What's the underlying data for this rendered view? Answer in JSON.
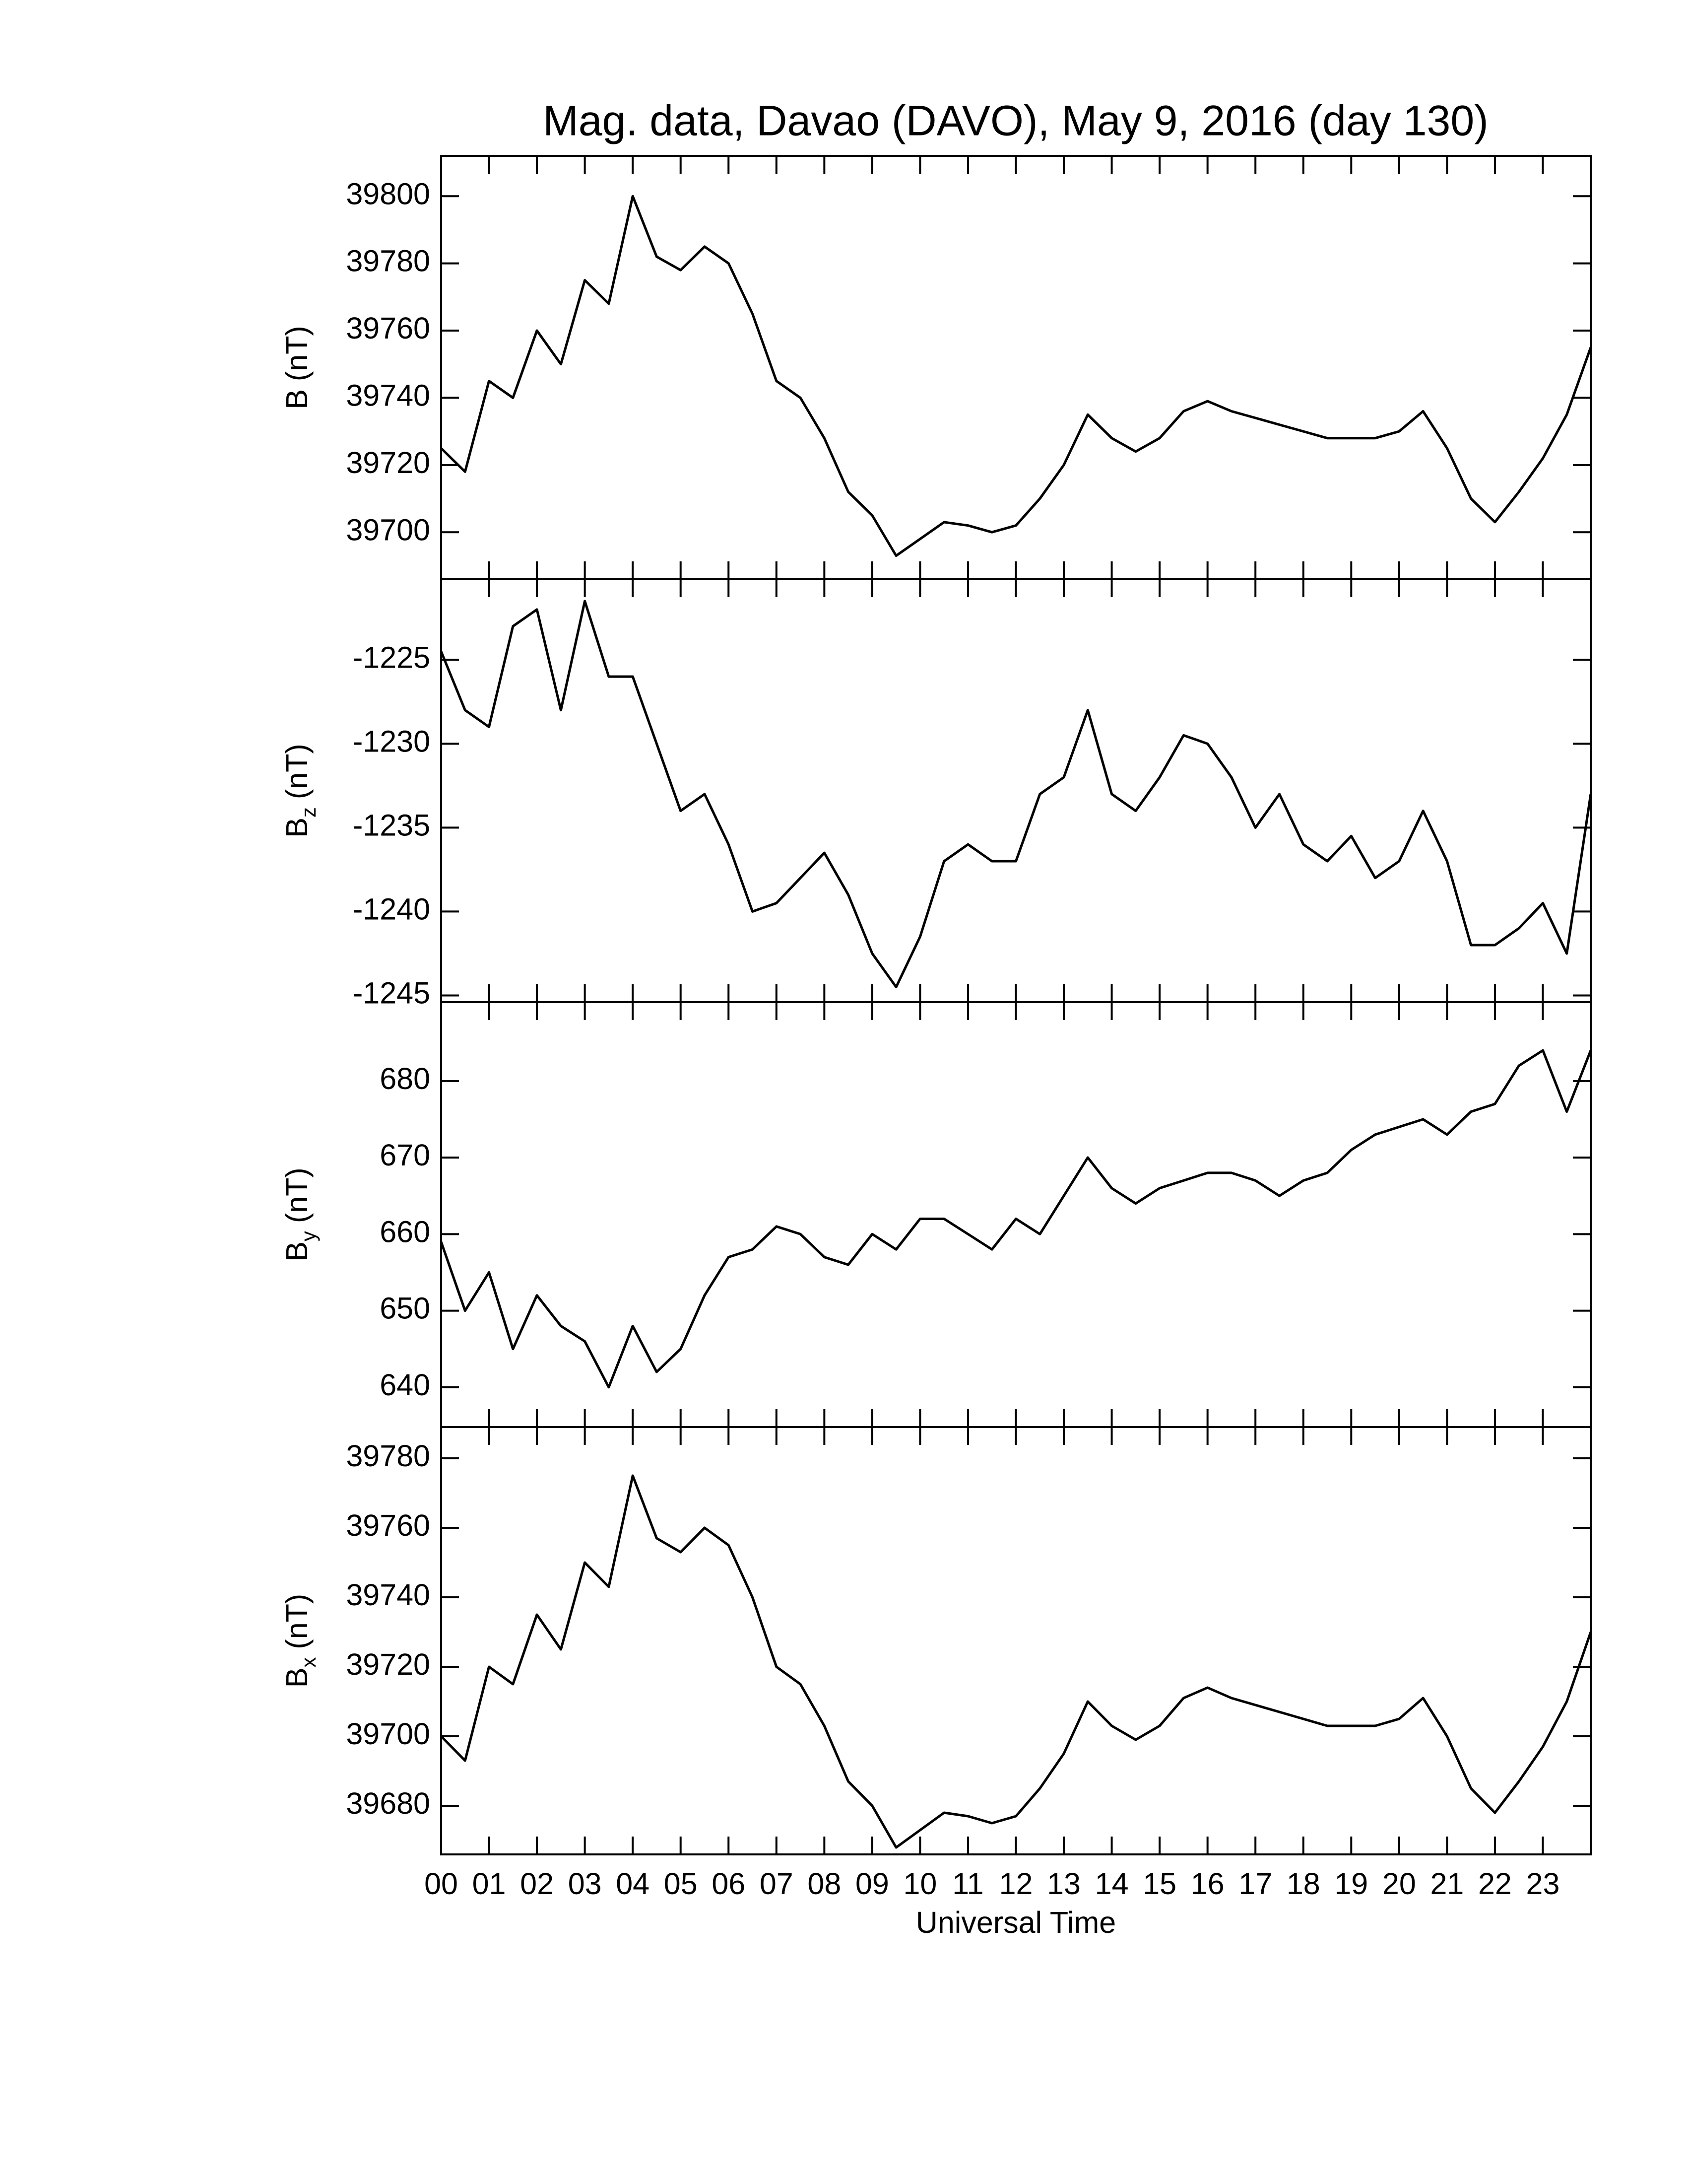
{
  "chart_data": [
    {
      "type": "line",
      "title": "Mag. data, Davao (DAVO), May 9, 2016 (day 130)",
      "ylabel": {
        "symbol": "B",
        "unit": "(nT)"
      },
      "xlim": [
        0,
        24
      ],
      "ylim": [
        39686,
        39812
      ],
      "yticks": [
        39700,
        39720,
        39740,
        39760,
        39780,
        39800
      ],
      "color": "#000000",
      "x": [
        0,
        0.5,
        1,
        1.5,
        2,
        2.5,
        3,
        3.5,
        4,
        4.5,
        5,
        5.5,
        6,
        6.5,
        7,
        7.5,
        8,
        8.5,
        9,
        9.5,
        10,
        10.5,
        11,
        11.5,
        12,
        12.5,
        13,
        13.5,
        14,
        14.5,
        15,
        15.5,
        16,
        16.5,
        17,
        17.5,
        18,
        18.5,
        19,
        19.5,
        20,
        20.5,
        21,
        21.5,
        22,
        22.5,
        23,
        23.5,
        24
      ],
      "values": [
        39725,
        39718,
        39745,
        39740,
        39760,
        39750,
        39775,
        39768,
        39800,
        39782,
        39778,
        39785,
        39780,
        39765,
        39745,
        39740,
        39728,
        39712,
        39705,
        39693,
        39698,
        39703,
        39702,
        39700,
        39702,
        39710,
        39720,
        39735,
        39728,
        39724,
        39728,
        39736,
        39739,
        39736,
        39734,
        39732,
        39730,
        39728,
        39728,
        39728,
        39730,
        39736,
        39725,
        39710,
        39703,
        39712,
        39722,
        39735,
        39755
      ]
    },
    {
      "type": "line",
      "ylabel": {
        "symbol": "B",
        "subscript": "z",
        "unit": "(nT)"
      },
      "xlim": [
        0,
        24
      ],
      "ylim": [
        -1245.4,
        -1220.2
      ],
      "yticks": [
        -1245,
        -1240,
        -1235,
        -1230,
        -1225
      ],
      "color": "#000000",
      "x": [
        0,
        0.5,
        1,
        1.5,
        2,
        2.5,
        3,
        3.5,
        4,
        4.5,
        5,
        5.5,
        6,
        6.5,
        7,
        7.5,
        8,
        8.5,
        9,
        9.5,
        10,
        10.5,
        11,
        11.5,
        12,
        12.5,
        13,
        13.5,
        14,
        14.5,
        15,
        15.5,
        16,
        16.5,
        17,
        17.5,
        18,
        18.5,
        19,
        19.5,
        20,
        20.5,
        21,
        21.5,
        22,
        22.5,
        23,
        23.5,
        24
      ],
      "values": [
        -1224.5,
        -1228,
        -1229,
        -1223,
        -1222,
        -1228,
        -1221.5,
        -1226,
        -1226,
        -1230,
        -1234,
        -1233,
        -1236,
        -1240,
        -1239.5,
        -1238,
        -1236.5,
        -1239,
        -1242.5,
        -1244.5,
        -1241.5,
        -1237,
        -1236,
        -1237,
        -1237,
        -1233,
        -1232,
        -1228,
        -1233,
        -1234,
        -1232,
        -1229.5,
        -1230,
        -1232,
        -1235,
        -1233,
        -1236,
        -1237,
        -1235.5,
        -1238,
        -1237,
        -1234,
        -1237,
        -1242,
        -1242,
        -1241,
        -1239.5,
        -1242.5,
        -1233
      ]
    },
    {
      "type": "line",
      "ylabel": {
        "symbol": "B",
        "subscript": "y",
        "unit": "(nT)"
      },
      "xlim": [
        0,
        24
      ],
      "ylim": [
        634.8,
        690.3
      ],
      "yticks": [
        640,
        650,
        660,
        670,
        680
      ],
      "color": "#000000",
      "x": [
        0,
        0.5,
        1,
        1.5,
        2,
        2.5,
        3,
        3.5,
        4,
        4.5,
        5,
        5.5,
        6,
        6.5,
        7,
        7.5,
        8,
        8.5,
        9,
        9.5,
        10,
        10.5,
        11,
        11.5,
        12,
        12.5,
        13,
        13.5,
        14,
        14.5,
        15,
        15.5,
        16,
        16.5,
        17,
        17.5,
        18,
        18.5,
        19,
        19.5,
        20,
        20.5,
        21,
        21.5,
        22,
        22.5,
        23,
        23.5,
        24
      ],
      "values": [
        659,
        650,
        655,
        645,
        652,
        648,
        646,
        640,
        648,
        642,
        645,
        652,
        657,
        658,
        661,
        660,
        657,
        656,
        660,
        658,
        662,
        662,
        660,
        658,
        662,
        660,
        665,
        670,
        666,
        664,
        666,
        667,
        668,
        668,
        667,
        665,
        667,
        668,
        671,
        673,
        674,
        675,
        673,
        676,
        677,
        682,
        684,
        676,
        684
      ]
    },
    {
      "type": "line",
      "ylabel": {
        "symbol": "B",
        "subscript": "x",
        "unit": "(nT)"
      },
      "xlabel": "Universal Time",
      "xlim": [
        0,
        24
      ],
      "ylim": [
        39666,
        39789
      ],
      "yticks": [
        39680,
        39700,
        39720,
        39740,
        39760,
        39780
      ],
      "color": "#000000",
      "xticks": [
        {
          "value": 0,
          "label": "00"
        },
        {
          "value": 1,
          "label": "01"
        },
        {
          "value": 2,
          "label": "02"
        },
        {
          "value": 3,
          "label": "03"
        },
        {
          "value": 4,
          "label": "04"
        },
        {
          "value": 5,
          "label": "05"
        },
        {
          "value": 6,
          "label": "06"
        },
        {
          "value": 7,
          "label": "07"
        },
        {
          "value": 8,
          "label": "08"
        },
        {
          "value": 9,
          "label": "09"
        },
        {
          "value": 10,
          "label": "10"
        },
        {
          "value": 11,
          "label": "11"
        },
        {
          "value": 12,
          "label": "12"
        },
        {
          "value": 13,
          "label": "13"
        },
        {
          "value": 14,
          "label": "14"
        },
        {
          "value": 15,
          "label": "15"
        },
        {
          "value": 16,
          "label": "16"
        },
        {
          "value": 17,
          "label": "17"
        },
        {
          "value": 18,
          "label": "18"
        },
        {
          "value": 19,
          "label": "19"
        },
        {
          "value": 20,
          "label": "20"
        },
        {
          "value": 21,
          "label": "21"
        },
        {
          "value": 22,
          "label": "22"
        },
        {
          "value": 23,
          "label": "23"
        }
      ],
      "x": [
        0,
        0.5,
        1,
        1.5,
        2,
        2.5,
        3,
        3.5,
        4,
        4.5,
        5,
        5.5,
        6,
        6.5,
        7,
        7.5,
        8,
        8.5,
        9,
        9.5,
        10,
        10.5,
        11,
        11.5,
        12,
        12.5,
        13,
        13.5,
        14,
        14.5,
        15,
        15.5,
        16,
        16.5,
        17,
        17.5,
        18,
        18.5,
        19,
        19.5,
        20,
        20.5,
        21,
        21.5,
        22,
        22.5,
        23,
        23.5,
        24
      ],
      "values": [
        39700,
        39693,
        39720,
        39715,
        39735,
        39725,
        39750,
        39743,
        39775,
        39757,
        39753,
        39760,
        39755,
        39740,
        39720,
        39715,
        39703,
        39687,
        39680,
        39668,
        39673,
        39678,
        39677,
        39675,
        39677,
        39685,
        39695,
        39710,
        39703,
        39699,
        39703,
        39711,
        39714,
        39711,
        39709,
        39707,
        39705,
        39703,
        39703,
        39703,
        39705,
        39711,
        39700,
        39685,
        39678,
        39687,
        39697,
        39710,
        39730
      ]
    }
  ]
}
